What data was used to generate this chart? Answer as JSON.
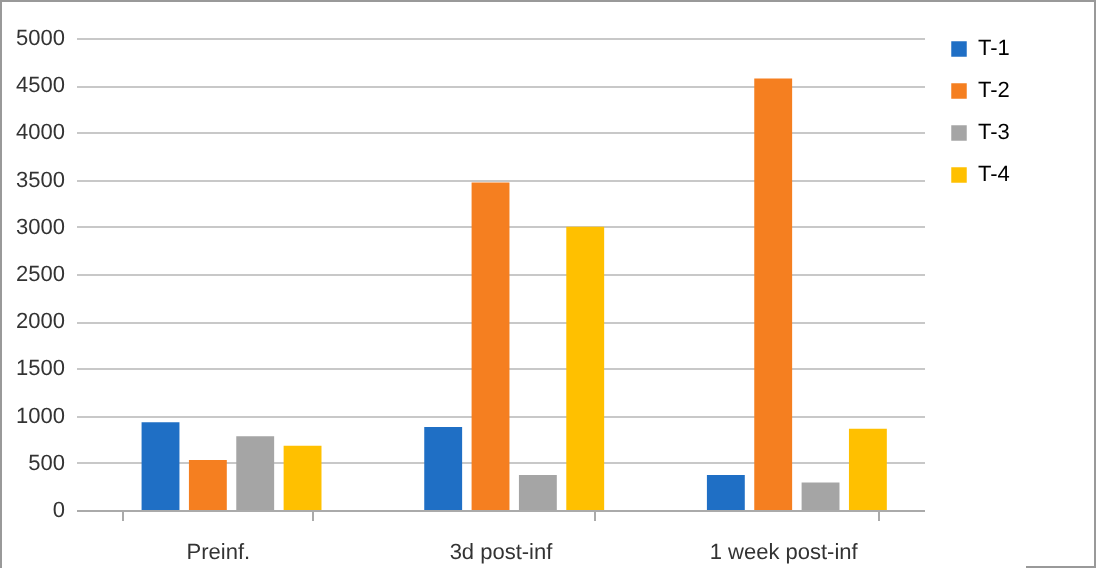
{
  "chart_data": {
    "type": "bar",
    "categories": [
      "Preinf.",
      "3d post-inf",
      "1 week post-inf"
    ],
    "series": [
      {
        "name": "T-1",
        "color": "#1f6fc5",
        "values": [
          930,
          880,
          370
        ]
      },
      {
        "name": "T-2",
        "color": "#f57f20",
        "values": [
          530,
          3470,
          4570
        ]
      },
      {
        "name": "T-3",
        "color": "#a5a5a5",
        "values": [
          780,
          370,
          290
        ]
      },
      {
        "name": "T-4",
        "color": "#ffc000",
        "values": [
          680,
          3000,
          860
        ]
      }
    ],
    "ylim": [
      0,
      5000
    ],
    "yticks": [
      0,
      500,
      1000,
      1500,
      2000,
      2500,
      3000,
      3500,
      4000,
      4500,
      5000
    ],
    "grid": "y",
    "legend": "right"
  }
}
